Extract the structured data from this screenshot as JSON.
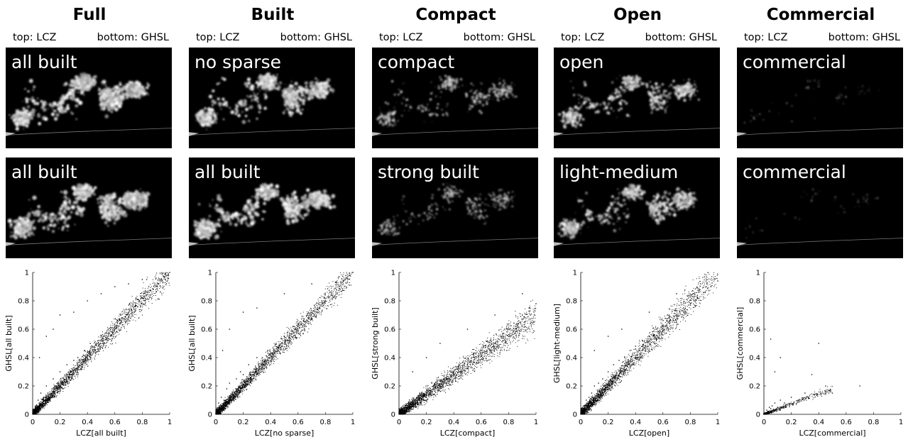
{
  "columns": [
    {
      "title": "Full",
      "subtitle_top": "top: LCZ",
      "subtitle_bottom": "bottom: GHSL",
      "top_map_label": "all built",
      "bottom_map_label": "all built",
      "density": 1.0,
      "bottom_density": 1.0
    },
    {
      "title": "Built",
      "subtitle_top": "top: LCZ",
      "subtitle_bottom": "bottom: GHSL",
      "top_map_label": "no sparse",
      "bottom_map_label": "all built",
      "density": 0.95,
      "bottom_density": 1.0
    },
    {
      "title": "Compact",
      "subtitle_top": "top: LCZ",
      "subtitle_bottom": "bottom: GHSL",
      "top_map_label": "compact",
      "bottom_map_label": "strong built",
      "density": 0.55,
      "bottom_density": 0.5
    },
    {
      "title": "Open",
      "subtitle_top": "top: LCZ",
      "subtitle_bottom": "bottom: GHSL",
      "top_map_label": "open",
      "bottom_map_label": "light-medium",
      "density": 0.75,
      "bottom_density": 0.8
    },
    {
      "title": "Commercial",
      "subtitle_top": "top: LCZ",
      "subtitle_bottom": "bottom: GHSL",
      "top_map_label": "commercial",
      "bottom_map_label": "commercial",
      "density": 0.08,
      "bottom_density": 0.06
    }
  ],
  "chart_data": [
    {
      "type": "scatter",
      "xlabel": "LCZ[all built]",
      "ylabel": "GHSL[all built]",
      "xlim": [
        0,
        1
      ],
      "ylim": [
        0,
        1
      ],
      "xticks": [
        0,
        0.2,
        0.4,
        0.6,
        0.8,
        1
      ],
      "yticks": [
        0,
        0.2,
        0.4,
        0.6,
        0.8,
        1
      ],
      "xtick_labels": [
        "0",
        "0.2",
        "0.4",
        "0.6",
        "0.8",
        "1"
      ],
      "ytick_labels": [
        "0",
        "0.2",
        "0.4",
        "0.6",
        "0.8",
        "1"
      ],
      "grid": false,
      "trend_slope": 1.0,
      "spread": 0.12,
      "color": "#000000",
      "x": [
        0.01,
        0.02,
        0.03,
        0.04,
        0.05,
        0.06,
        0.08,
        0.1,
        0.12,
        0.15,
        0.18,
        0.2,
        0.22,
        0.25,
        0.28,
        0.3,
        0.33,
        0.35,
        0.38,
        0.4,
        0.42,
        0.45,
        0.48,
        0.5,
        0.52,
        0.55,
        0.58,
        0.6,
        0.62,
        0.65,
        0.68,
        0.7,
        0.72,
        0.75,
        0.78,
        0.8,
        0.82,
        0.85,
        0.88,
        0.9,
        0.92,
        0.94,
        0.96,
        0.98,
        0.99,
        1.0,
        0.05,
        0.1,
        0.15,
        0.2,
        0.3,
        0.4,
        0.5,
        0.6,
        0.7,
        0.8,
        0.9,
        0.97
      ],
      "y": [
        0.02,
        0.05,
        0.03,
        0.1,
        0.06,
        0.15,
        0.12,
        0.2,
        0.1,
        0.25,
        0.22,
        0.3,
        0.18,
        0.35,
        0.3,
        0.38,
        0.4,
        0.32,
        0.45,
        0.42,
        0.5,
        0.48,
        0.52,
        0.55,
        0.5,
        0.6,
        0.58,
        0.62,
        0.66,
        0.68,
        0.65,
        0.72,
        0.74,
        0.76,
        0.8,
        0.82,
        0.8,
        0.86,
        0.88,
        0.9,
        0.92,
        0.95,
        0.97,
        0.98,
        0.99,
        1.0,
        0.4,
        0.55,
        0.6,
        0.7,
        0.72,
        0.8,
        0.85,
        0.9,
        0.92,
        0.95,
        0.96,
        0.99
      ]
    },
    {
      "type": "scatter",
      "xlabel": "LCZ[no sparse]",
      "ylabel": "GHSL[all built]",
      "xlim": [
        0,
        1
      ],
      "ylim": [
        0,
        1
      ],
      "xticks": [
        0,
        0.2,
        0.4,
        0.6,
        0.8,
        1
      ],
      "yticks": [
        0,
        0.2,
        0.4,
        0.6,
        0.8,
        1
      ],
      "xtick_labels": [
        "0",
        "0.2",
        "0.4",
        "0.6",
        "0.8",
        "1"
      ],
      "ytick_labels": [
        "0",
        "0.2",
        "0.4",
        "0.6",
        "0.8",
        "1"
      ],
      "grid": false,
      "trend_slope": 1.0,
      "spread": 0.12,
      "color": "#000000",
      "x": [
        0.01,
        0.02,
        0.04,
        0.06,
        0.08,
        0.1,
        0.12,
        0.15,
        0.18,
        0.2,
        0.24,
        0.28,
        0.3,
        0.34,
        0.38,
        0.4,
        0.44,
        0.48,
        0.5,
        0.54,
        0.58,
        0.6,
        0.64,
        0.68,
        0.7,
        0.74,
        0.78,
        0.8,
        0.84,
        0.88,
        0.9,
        0.93,
        0.96,
        0.98,
        1.0,
        0.05,
        0.1,
        0.2,
        0.3,
        0.5,
        0.7,
        0.9
      ],
      "y": [
        0.03,
        0.08,
        0.12,
        0.1,
        0.18,
        0.22,
        0.15,
        0.25,
        0.3,
        0.28,
        0.35,
        0.32,
        0.4,
        0.38,
        0.45,
        0.42,
        0.5,
        0.48,
        0.55,
        0.52,
        0.6,
        0.62,
        0.66,
        0.68,
        0.72,
        0.74,
        0.78,
        0.8,
        0.84,
        0.88,
        0.9,
        0.94,
        0.96,
        0.98,
        1.0,
        0.45,
        0.6,
        0.72,
        0.75,
        0.85,
        0.92,
        0.97
      ]
    },
    {
      "type": "scatter",
      "xlabel": "LCZ[compact]",
      "ylabel": "GHSL[strong built]",
      "xlim": [
        0,
        1
      ],
      "ylim": [
        0,
        1
      ],
      "xticks": [
        0,
        0.2,
        0.4,
        0.6,
        0.8,
        1
      ],
      "yticks": [
        0,
        0.2,
        0.4,
        0.6,
        0.8,
        1
      ],
      "xtick_labels": [
        "0",
        "0.2",
        "0.4",
        "0.6",
        "0.8",
        "1"
      ],
      "ytick_labels": [
        "0",
        "0.2",
        "0.4",
        "0.6",
        "0.8",
        "1"
      ],
      "grid": false,
      "trend_slope": 0.7,
      "spread": 0.14,
      "color": "#000000",
      "x": [
        0.01,
        0.02,
        0.03,
        0.05,
        0.07,
        0.1,
        0.12,
        0.15,
        0.2,
        0.25,
        0.3,
        0.35,
        0.4,
        0.45,
        0.5,
        0.55,
        0.6,
        0.65,
        0.7,
        0.75,
        0.8,
        0.85,
        0.9,
        0.95,
        1.0,
        0.1,
        0.2,
        0.3,
        0.5,
        0.7,
        0.9
      ],
      "y": [
        0.01,
        0.04,
        0.06,
        0.03,
        0.08,
        0.1,
        0.05,
        0.12,
        0.15,
        0.18,
        0.2,
        0.25,
        0.28,
        0.3,
        0.35,
        0.4,
        0.42,
        0.48,
        0.5,
        0.55,
        0.6,
        0.62,
        0.7,
        0.75,
        0.78,
        0.3,
        0.4,
        0.5,
        0.6,
        0.7,
        0.85
      ]
    },
    {
      "type": "scatter",
      "xlabel": "LCZ[open]",
      "ylabel": "GHSL[light-medium]",
      "xlim": [
        0,
        1
      ],
      "ylim": [
        0,
        1
      ],
      "xticks": [
        0,
        0.2,
        0.4,
        0.6,
        0.8,
        1
      ],
      "yticks": [
        0,
        0.2,
        0.4,
        0.6,
        0.8,
        1
      ],
      "xtick_labels": [
        "0",
        "0.2",
        "0.4",
        "0.6",
        "0.8",
        "1"
      ],
      "ytick_labels": [
        "0",
        "0.2",
        "0.4",
        "0.6",
        "0.8",
        "1"
      ],
      "grid": false,
      "trend_slope": 1.0,
      "spread": 0.14,
      "color": "#000000",
      "x": [
        0.01,
        0.02,
        0.04,
        0.06,
        0.08,
        0.1,
        0.13,
        0.16,
        0.2,
        0.24,
        0.28,
        0.32,
        0.36,
        0.4,
        0.45,
        0.5,
        0.55,
        0.6,
        0.65,
        0.7,
        0.75,
        0.8,
        0.85,
        0.9,
        0.95,
        1.0,
        0.1,
        0.2,
        0.3,
        0.5,
        0.7
      ],
      "y": [
        0.02,
        0.06,
        0.1,
        0.12,
        0.15,
        0.2,
        0.22,
        0.25,
        0.3,
        0.35,
        0.38,
        0.4,
        0.45,
        0.48,
        0.52,
        0.55,
        0.6,
        0.62,
        0.68,
        0.7,
        0.75,
        0.78,
        0.82,
        0.86,
        0.9,
        0.94,
        0.45,
        0.55,
        0.6,
        0.72,
        0.85
      ]
    },
    {
      "type": "scatter",
      "xlabel": "LCZ[commercial]",
      "ylabel": "GHSL[commercial]",
      "xlim": [
        0,
        1
      ],
      "ylim": [
        0,
        1
      ],
      "xticks": [
        0,
        0.2,
        0.4,
        0.6,
        0.8,
        1
      ],
      "yticks": [
        0,
        0.2,
        0.4,
        0.6,
        0.8,
        1
      ],
      "xtick_labels": [
        "0",
        "0.2",
        "0.4",
        "0.6",
        "0.8",
        "1"
      ],
      "ytick_labels": [
        "0",
        "0.2",
        "0.4",
        "0.6",
        "0.8",
        "1"
      ],
      "grid": false,
      "trend_slope": 0.3,
      "spread": 0.06,
      "color": "#000000",
      "x": [
        0.0,
        0.01,
        0.02,
        0.03,
        0.04,
        0.05,
        0.06,
        0.08,
        0.1,
        0.12,
        0.15,
        0.2,
        0.25,
        0.3,
        0.35,
        0.4,
        0.45,
        0.5,
        0.7,
        0.05,
        0.08,
        0.12
      ],
      "y": [
        0.0,
        0.01,
        0.03,
        0.02,
        0.05,
        0.04,
        0.06,
        0.08,
        0.05,
        0.1,
        0.08,
        0.12,
        0.1,
        0.15,
        0.28,
        0.5,
        0.2,
        0.15,
        0.2,
        0.53,
        0.3,
        0.4
      ]
    }
  ]
}
